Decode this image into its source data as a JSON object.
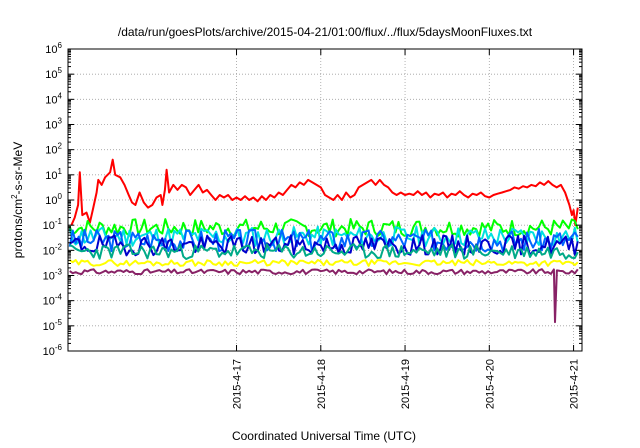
{
  "chart_data": {
    "type": "line",
    "title": "/data/run/goesPlots/archive/2015-04-21/01:00/flux/../flux/5daysMoonFluxes.txt",
    "xlabel": "Coordinated Universal Time (UTC)",
    "ylabel_parts": [
      "protons/cm",
      "2",
      "-s-sr-MeV"
    ],
    "y_scale": "log",
    "ylim": [
      1e-06,
      1000000.0
    ],
    "y_ticks": [
      {
        "exp": -6,
        "base": "10",
        "sup": "-6"
      },
      {
        "exp": -5,
        "base": "10",
        "sup": "-5"
      },
      {
        "exp": -4,
        "base": "10",
        "sup": "-4"
      },
      {
        "exp": -3,
        "base": "10",
        "sup": "-3"
      },
      {
        "exp": -2,
        "base": "10",
        "sup": "-2"
      },
      {
        "exp": -1,
        "base": "10",
        "sup": "-1"
      },
      {
        "exp": 0,
        "base": "10",
        "sup": "0"
      },
      {
        "exp": 1,
        "base": "10",
        "sup": "1"
      },
      {
        "exp": 2,
        "base": "10",
        "sup": "2"
      },
      {
        "exp": 3,
        "base": "10",
        "sup": "3"
      },
      {
        "exp": 4,
        "base": "10",
        "sup": "4"
      },
      {
        "exp": 5,
        "base": "10",
        "sup": "5"
      },
      {
        "exp": 6,
        "base": "10",
        "sup": "6"
      }
    ],
    "x_range_days": [
      "2015-04-16T01:00",
      "2015-04-21T01:45"
    ],
    "x_ticks": [
      {
        "label": "2015-4-17",
        "day": 1.0
      },
      {
        "label": "2015-4-18",
        "day": 2.0
      },
      {
        "label": "2015-4-19",
        "day": 3.0
      },
      {
        "label": "2015-4-20",
        "day": 4.0
      },
      {
        "label": "2015-4-21",
        "day": 5.0
      }
    ],
    "grid": true,
    "series": [
      {
        "color": "#ff0000",
        "points": [
          [
            -0.96,
            -1.0
          ],
          [
            -0.92,
            -0.7
          ],
          [
            -0.88,
            -0.2
          ],
          [
            -0.86,
            1.1
          ],
          [
            -0.83,
            -0.6
          ],
          [
            -0.78,
            -0.5
          ],
          [
            -0.74,
            -0.9
          ],
          [
            -0.7,
            -0.3
          ],
          [
            -0.66,
            0.3
          ],
          [
            -0.64,
            0.8
          ],
          [
            -0.6,
            0.6
          ],
          [
            -0.56,
            0.9
          ],
          [
            -0.5,
            1.1
          ],
          [
            -0.47,
            1.6
          ],
          [
            -0.44,
            1.0
          ],
          [
            -0.38,
            0.9
          ],
          [
            -0.33,
            0.6
          ],
          [
            -0.28,
            0.2
          ],
          [
            -0.24,
            -0.1
          ],
          [
            -0.2,
            -0.2
          ],
          [
            -0.15,
            0.3
          ],
          [
            -0.1,
            -0.1
          ],
          [
            -0.05,
            -0.3
          ],
          [
            0.0,
            -0.2
          ],
          [
            0.05,
            0.1
          ],
          [
            0.1,
            0.2
          ],
          [
            0.12,
            -0.2
          ],
          [
            0.15,
            0.4
          ],
          [
            0.17,
            1.2
          ],
          [
            0.2,
            0.3
          ],
          [
            0.25,
            0.6
          ],
          [
            0.3,
            0.4
          ],
          [
            0.35,
            0.6
          ],
          [
            0.4,
            0.5
          ],
          [
            0.45,
            0.2
          ],
          [
            0.5,
            0.4
          ],
          [
            0.55,
            0.6
          ],
          [
            0.6,
            0.3
          ],
          [
            0.65,
            0.4
          ],
          [
            0.7,
            0.2
          ],
          [
            0.75,
            0.0
          ],
          [
            0.8,
            0.2
          ],
          [
            0.85,
            0.1
          ],
          [
            0.9,
            0.2
          ],
          [
            0.95,
            0.0
          ],
          [
            1.0,
            0.1
          ],
          [
            1.05,
            0.0
          ],
          [
            1.1,
            0.15
          ],
          [
            1.15,
            0.0
          ],
          [
            1.2,
            0.1
          ],
          [
            1.25,
            -0.05
          ],
          [
            1.3,
            0.15
          ],
          [
            1.35,
            0.0
          ],
          [
            1.4,
            0.2
          ],
          [
            1.45,
            0.1
          ],
          [
            1.5,
            0.3
          ],
          [
            1.55,
            0.2
          ],
          [
            1.6,
            0.4
          ],
          [
            1.65,
            0.6
          ],
          [
            1.7,
            0.5
          ],
          [
            1.75,
            0.7
          ],
          [
            1.8,
            0.6
          ],
          [
            1.85,
            0.8
          ],
          [
            1.9,
            0.7
          ],
          [
            1.95,
            0.6
          ],
          [
            2.0,
            0.5
          ],
          [
            2.05,
            0.2
          ],
          [
            2.1,
            0.1
          ],
          [
            2.15,
            0.0
          ],
          [
            2.2,
            0.2
          ],
          [
            2.25,
            0.0
          ],
          [
            2.3,
            0.3
          ],
          [
            2.35,
            0.1
          ],
          [
            2.4,
            0.2
          ],
          [
            2.45,
            0.5
          ],
          [
            2.5,
            0.6
          ],
          [
            2.55,
            0.7
          ],
          [
            2.6,
            0.8
          ],
          [
            2.65,
            0.6
          ],
          [
            2.7,
            0.8
          ],
          [
            2.75,
            0.6
          ],
          [
            2.8,
            0.5
          ],
          [
            2.85,
            0.3
          ],
          [
            2.9,
            0.2
          ],
          [
            2.95,
            0.3
          ],
          [
            3.0,
            0.2
          ],
          [
            3.05,
            0.25
          ],
          [
            3.1,
            0.2
          ],
          [
            3.15,
            0.35
          ],
          [
            3.2,
            0.2
          ],
          [
            3.25,
            0.3
          ],
          [
            3.3,
            0.1
          ],
          [
            3.35,
            0.25
          ],
          [
            3.4,
            0.2
          ],
          [
            3.45,
            0.3
          ],
          [
            3.5,
            0.1
          ],
          [
            3.55,
            0.25
          ],
          [
            3.6,
            0.2
          ],
          [
            3.65,
            0.35
          ],
          [
            3.7,
            0.2
          ],
          [
            3.75,
            0.1
          ],
          [
            3.8,
            0.25
          ],
          [
            3.85,
            0.2
          ],
          [
            3.9,
            0.3
          ],
          [
            3.95,
            0.15
          ],
          [
            4.0,
            0.1
          ],
          [
            4.05,
            0.2
          ],
          [
            4.1,
            0.25
          ],
          [
            4.15,
            0.3
          ],
          [
            4.2,
            0.35
          ],
          [
            4.25,
            0.4
          ],
          [
            4.3,
            0.5
          ],
          [
            4.35,
            0.45
          ],
          [
            4.4,
            0.55
          ],
          [
            4.45,
            0.5
          ],
          [
            4.5,
            0.6
          ],
          [
            4.55,
            0.55
          ],
          [
            4.6,
            0.7
          ],
          [
            4.65,
            0.6
          ],
          [
            4.7,
            0.75
          ],
          [
            4.75,
            0.6
          ],
          [
            4.8,
            0.5
          ],
          [
            4.85,
            0.6
          ],
          [
            4.9,
            0.3
          ],
          [
            4.95,
            -0.2
          ],
          [
            4.98,
            -0.6
          ],
          [
            5.0,
            -0.4
          ],
          [
            5.02,
            -1.0
          ],
          [
            5.05,
            -0.3
          ]
        ]
      },
      {
        "color": "#00ff00",
        "level": -1.1,
        "amp": 0.35,
        "seed": 7
      },
      {
        "color": "#00e0e0",
        "level": -1.45,
        "amp": 0.4,
        "seed": 11
      },
      {
        "color": "#0066ff",
        "level": -1.6,
        "amp": 0.45,
        "seed": 3
      },
      {
        "color": "#0000cc",
        "level": -1.8,
        "amp": 0.4,
        "seed": 19
      },
      {
        "color": "#00aa88",
        "level": -2.05,
        "amp": 0.3,
        "seed": 23
      },
      {
        "color": "#ffff00",
        "level": -2.5,
        "amp": 0.12,
        "seed": 29
      },
      {
        "color": "#882266",
        "level": -2.85,
        "amp": 0.1,
        "seed": 31
      }
    ]
  }
}
